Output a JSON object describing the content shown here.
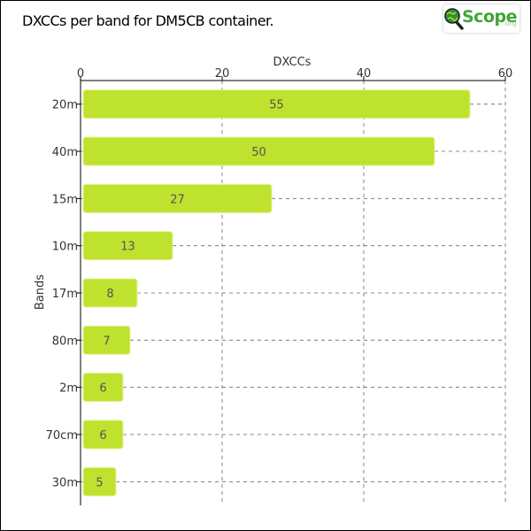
{
  "chart_data": {
    "type": "bar",
    "orientation": "horizontal",
    "title": "DXCCs per band for DM5CB container.",
    "xlabel": "DXCCs",
    "ylabel": "Bands",
    "categories": [
      "20m",
      "40m",
      "15m",
      "10m",
      "17m",
      "80m",
      "2m",
      "70cm",
      "30m"
    ],
    "values": [
      55,
      50,
      27,
      13,
      8,
      7,
      6,
      6,
      5
    ],
    "xlim": [
      0,
      60
    ],
    "xticks": [
      0,
      20,
      40,
      60
    ],
    "x_axis_position": "top",
    "grid": "vertical-dashed",
    "data_labels": true,
    "bar_color": "#bfe22e"
  },
  "logo": {
    "text": "Scope",
    "suffix": ".org",
    "icon": "magnifier-globe-icon",
    "color": "#3fa535"
  }
}
